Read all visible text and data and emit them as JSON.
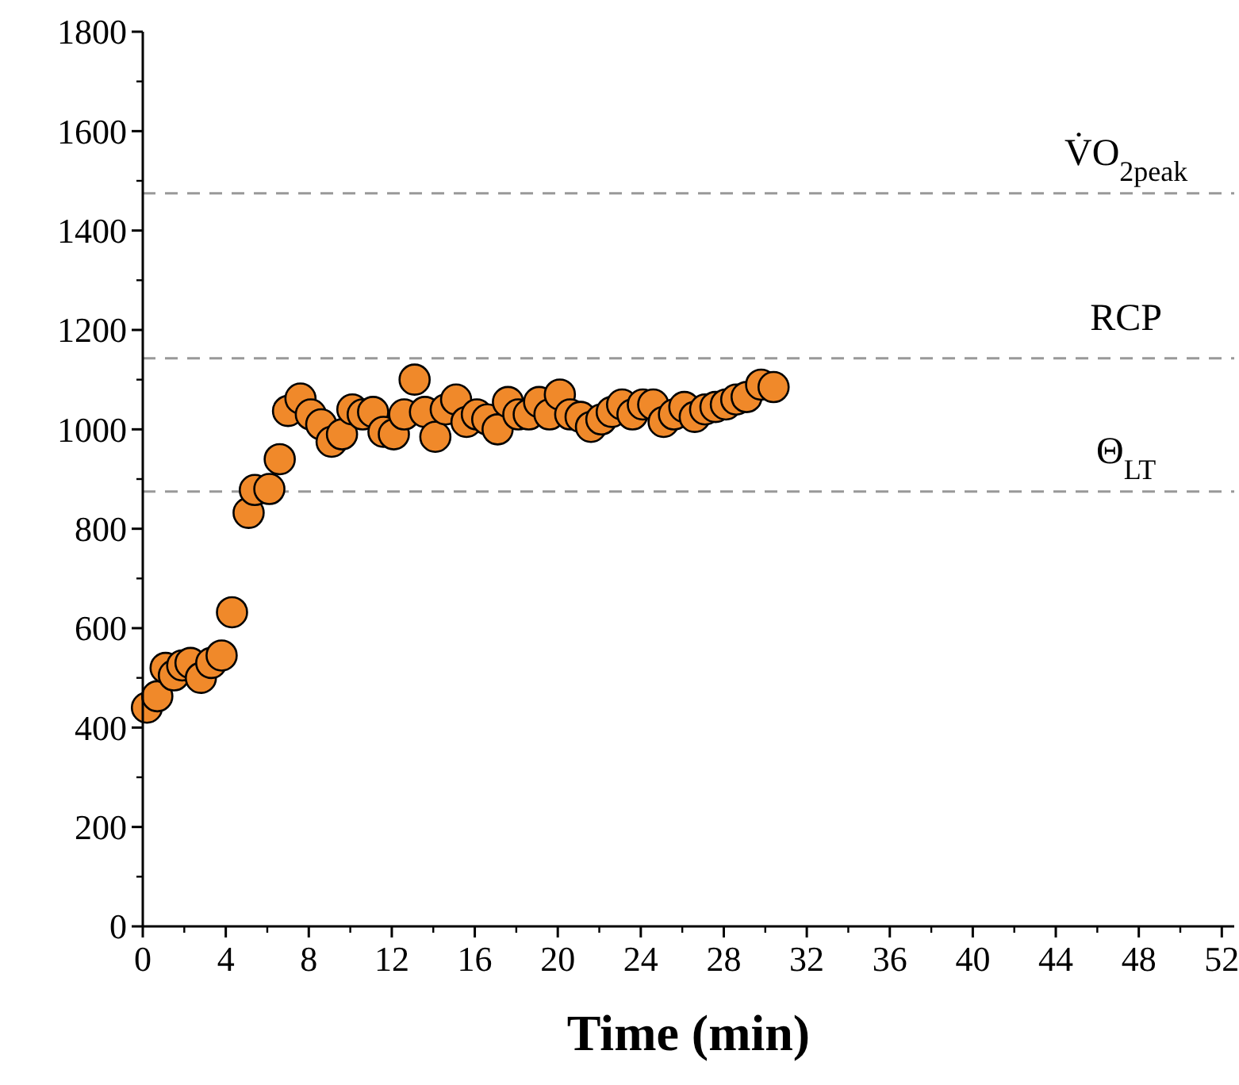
{
  "chart_data": {
    "type": "scatter",
    "xlabel": "Time (min)",
    "xlim": [
      0,
      52.6
    ],
    "xticks": [
      0,
      4,
      8,
      12,
      16,
      20,
      24,
      28,
      32,
      36,
      40,
      44,
      48,
      52
    ],
    "ylim": [
      0,
      1800
    ],
    "yticks": [
      0,
      200,
      400,
      600,
      800,
      1000,
      1200,
      1400,
      1600,
      1800
    ],
    "marker": "circle",
    "grid": false,
    "x": [
      0.2,
      0.7,
      1.1,
      1.5,
      1.9,
      2.3,
      2.8,
      3.3,
      3.8,
      4.3,
      5.1,
      5.4,
      6.1,
      6.6,
      7.0,
      7.6,
      8.1,
      8.6,
      9.1,
      9.6,
      10.1,
      10.6,
      11.1,
      11.6,
      12.1,
      12.6,
      13.1,
      13.6,
      14.1,
      14.6,
      15.1,
      15.6,
      16.1,
      16.6,
      17.1,
      17.6,
      18.1,
      18.6,
      19.1,
      19.6,
      20.1,
      20.6,
      21.1,
      21.6,
      22.1,
      22.6,
      23.1,
      23.6,
      24.1,
      24.6,
      25.1,
      25.6,
      26.1,
      26.6,
      27.1,
      27.6,
      28.1,
      28.6,
      29.1,
      29.8,
      30.4
    ],
    "series": [
      {
        "color": "#f0892a",
        "values": [
          440,
          463,
          520,
          505,
          525,
          530,
          500,
          530,
          545,
          632,
          832,
          878,
          880,
          940,
          1037,
          1062,
          1030,
          1010,
          975,
          990,
          1040,
          1030,
          1035,
          995,
          990,
          1030,
          1100,
          1035,
          985,
          1040,
          1060,
          1015,
          1030,
          1020,
          1000,
          1055,
          1030,
          1030,
          1055,
          1030,
          1070,
          1030,
          1025,
          1005,
          1020,
          1035,
          1050,
          1030,
          1050,
          1050,
          1015,
          1030,
          1045,
          1025,
          1040,
          1045,
          1050,
          1060,
          1065,
          1090,
          1085
        ]
      }
    ],
    "ref_lines": [
      {
        "axis": "y",
        "value": 1475,
        "label": "V̇O$_{2peak}$",
        "color": "#999999",
        "line_style": "dashed"
      },
      {
        "axis": "y",
        "value": 1143,
        "label": "RCP",
        "color": "#999999",
        "line_style": "dashed"
      },
      {
        "axis": "y",
        "value": 875,
        "label": "Θ$_{LT}$",
        "color": "#999999",
        "line_style": "dashed"
      }
    ]
  }
}
